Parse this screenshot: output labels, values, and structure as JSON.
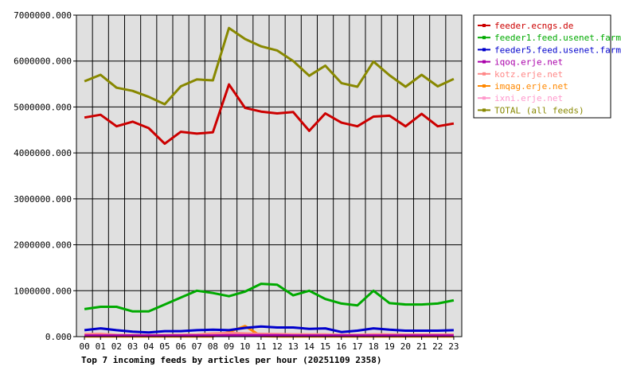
{
  "chart_data": {
    "type": "line",
    "title": "Top 7 incoming feeds by articles per hour (20251109 2358)",
    "xlabel": "",
    "ylabel": "",
    "categories": [
      "00",
      "01",
      "02",
      "03",
      "04",
      "05",
      "06",
      "07",
      "08",
      "09",
      "10",
      "11",
      "12",
      "13",
      "14",
      "15",
      "16",
      "17",
      "18",
      "19",
      "20",
      "21",
      "22",
      "23"
    ],
    "ylim": [
      0,
      7000000
    ],
    "yticks": [
      "0.000",
      "1000000.000",
      "2000000.000",
      "3000000.000",
      "4000000.000",
      "5000000.000",
      "6000000.000",
      "7000000.000"
    ],
    "grid": true,
    "legend_position": "right",
    "series": [
      {
        "name": "feeder.ecngs.de",
        "color": "#cc0000",
        "values": [
          4770000,
          4830000,
          4580000,
          4680000,
          4540000,
          4200000,
          4460000,
          4420000,
          4450000,
          5490000,
          4980000,
          4900000,
          4860000,
          4890000,
          4480000,
          4860000,
          4660000,
          4580000,
          4790000,
          4810000,
          4580000,
          4850000,
          4580000,
          4640000
        ]
      },
      {
        "name": "feeder1.feed.usenet.farm",
        "color": "#00aa00",
        "values": [
          600000,
          650000,
          650000,
          550000,
          550000,
          700000,
          850000,
          1000000,
          950000,
          880000,
          980000,
          1150000,
          1130000,
          900000,
          1000000,
          820000,
          720000,
          680000,
          1000000,
          730000,
          700000,
          700000,
          720000,
          790000
        ]
      },
      {
        "name": "feeder5.feed.usenet.farm",
        "color": "#0000cc",
        "values": [
          140000,
          180000,
          140000,
          110000,
          90000,
          120000,
          120000,
          140000,
          150000,
          140000,
          190000,
          220000,
          200000,
          200000,
          170000,
          180000,
          100000,
          130000,
          180000,
          150000,
          130000,
          130000,
          130000,
          140000
        ]
      },
      {
        "name": "iqoq.erje.net",
        "color": "#aa00aa",
        "values": [
          25000,
          25000,
          25000,
          25000,
          25000,
          25000,
          25000,
          25000,
          25000,
          30000,
          30000,
          30000,
          30000,
          25000,
          25000,
          25000,
          25000,
          25000,
          25000,
          25000,
          25000,
          25000,
          25000,
          25000
        ]
      },
      {
        "name": "kotz.erje.net",
        "color": "#ff8888",
        "values": [
          55000,
          60000,
          40000,
          35000,
          30000,
          35000,
          40000,
          45000,
          70000,
          80000,
          70000,
          60000,
          55000,
          50000,
          50000,
          50000,
          40000,
          40000,
          50000,
          50000,
          45000,
          45000,
          45000,
          45000
        ]
      },
      {
        "name": "imqag.erje.net",
        "color": "#ff8800",
        "values": [
          5000,
          5000,
          5000,
          5000,
          5000,
          5000,
          5000,
          5000,
          5000,
          100000,
          230000,
          10000,
          5000,
          5000,
          5000,
          5000,
          5000,
          5000,
          5000,
          5000,
          5000,
          5000,
          5000,
          5000
        ]
      },
      {
        "name": "ixni.erje.net",
        "color": "#ff99cc",
        "values": [
          15000,
          15000,
          15000,
          15000,
          15000,
          15000,
          15000,
          15000,
          15000,
          15000,
          15000,
          15000,
          15000,
          15000,
          15000,
          15000,
          15000,
          15000,
          15000,
          15000,
          15000,
          15000,
          15000,
          15000
        ]
      },
      {
        "name": "TOTAL (all feeds)",
        "color": "#888800",
        "values": [
          5560000,
          5700000,
          5420000,
          5350000,
          5220000,
          5060000,
          5450000,
          5600000,
          5580000,
          6720000,
          6480000,
          6320000,
          6230000,
          6000000,
          5680000,
          5900000,
          5520000,
          5440000,
          5990000,
          5690000,
          5440000,
          5700000,
          5450000,
          5610000
        ]
      }
    ]
  }
}
